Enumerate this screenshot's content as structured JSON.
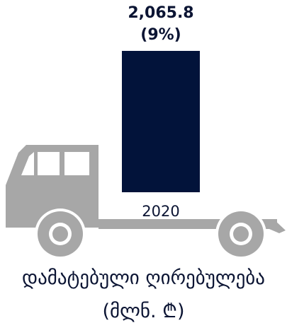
{
  "chart_data": {
    "type": "bar",
    "categories": [
      "2020"
    ],
    "values": [
      2065.8
    ],
    "data_labels": [
      [
        "2,065.8",
        "(9%)"
      ]
    ],
    "caption_line1": "დამატებული ღირებულება",
    "caption_line2": "(მლნ. ₾)",
    "colors": {
      "bar": "#02133a",
      "truck": "#a7a7a7",
      "text": "#0b1433"
    }
  }
}
